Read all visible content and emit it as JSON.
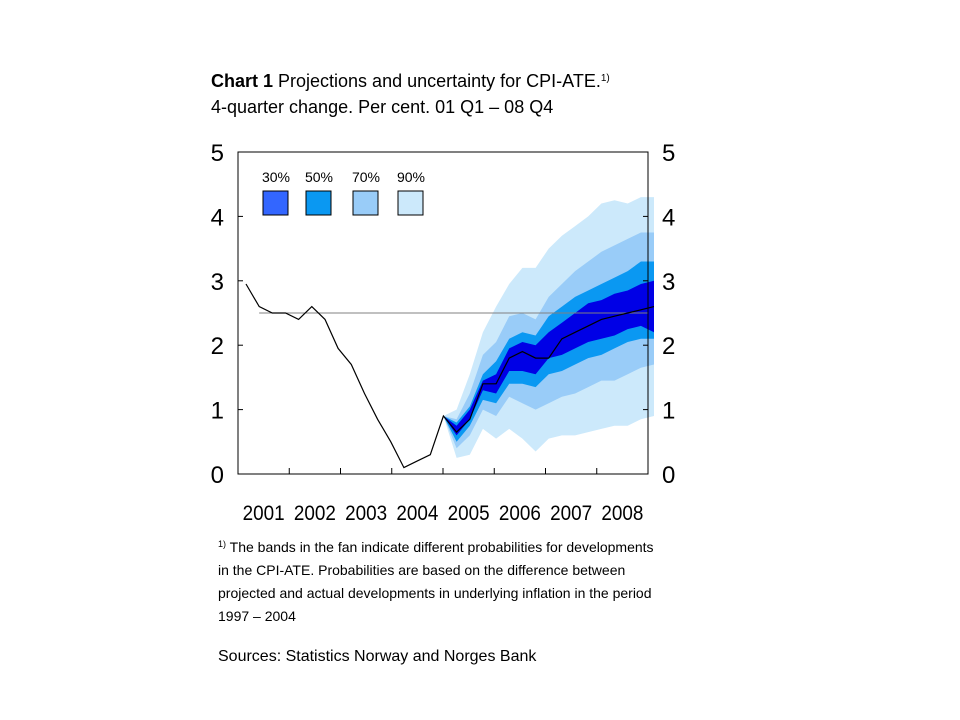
{
  "header": {
    "chart_label": "Chart 1",
    "title_rest": " Projections and uncertainty for CPI-ATE.",
    "title_sup": "1)",
    "subtitle": "4-quarter change. Per cent. 01 Q1 – 08 Q4"
  },
  "footnote": {
    "marker": "1)",
    "text": " The bands in the fan indicate different probabilities for developments in the CPI-ATE. Probabilities are based on the difference between projected and actual developments in underlying inflation in the period 1997 – 2004"
  },
  "sources": "Sources: Statistics Norway and Norges Bank",
  "colors": {
    "band_90": "#cce9fb",
    "band_70": "#99ccf8",
    "band_50": "#0a98f2",
    "band_30": "#0000e6",
    "legend_30": "#3366ff",
    "line": "#000000",
    "target_line": "#808080"
  },
  "chart_data": {
    "type": "area",
    "title": "Projections and uncertainty for CPI-ATE.",
    "subtitle": "4-quarter change. Per cent. 01 Q1 – 08 Q4",
    "x_tick_labels": [
      "2001",
      "2002",
      "2003",
      "2004",
      "2005",
      "2006",
      "2007",
      "2008"
    ],
    "y_left_ticks": [
      "0",
      "1",
      "2",
      "3",
      "4",
      "5"
    ],
    "y_right_ticks": [
      "0",
      "1",
      "2",
      "3",
      "4",
      "5"
    ],
    "ylim": [
      0,
      5
    ],
    "x_start": "01 Q1",
    "x_end": "08 Q4",
    "grid": false,
    "legend": [
      {
        "label": "30%",
        "color": "#3366ff"
      },
      {
        "label": "50%",
        "color": "#0a98f2"
      },
      {
        "label": "70%",
        "color": "#99ccf8"
      },
      {
        "label": "90%",
        "color": "#cce9fb"
      }
    ],
    "legend_position": "top-left",
    "inflation_target": 2.5,
    "series": [
      {
        "name": "CPI-ATE",
        "quarters": [
          "01 Q1",
          "01 Q2",
          "01 Q3",
          "01 Q4",
          "02 Q1",
          "02 Q2",
          "02 Q3",
          "02 Q4",
          "03 Q1",
          "03 Q2",
          "03 Q3",
          "03 Q4",
          "04 Q1",
          "04 Q2",
          "04 Q3",
          "04 Q4",
          "05 Q1",
          "05 Q2",
          "05 Q3",
          "05 Q4",
          "06 Q1",
          "06 Q2",
          "06 Q3",
          "06 Q4",
          "07 Q1",
          "07 Q2",
          "07 Q3",
          "07 Q4",
          "08 Q1",
          "08 Q2",
          "08 Q3",
          "08 Q4"
        ],
        "values": [
          2.95,
          2.6,
          2.5,
          2.5,
          2.4,
          2.6,
          2.4,
          1.95,
          1.7,
          1.25,
          0.85,
          0.5,
          0.1,
          0.2,
          0.3,
          0.9,
          0.65,
          0.85,
          1.4,
          1.4,
          1.8,
          1.9,
          1.8,
          1.8,
          2.1,
          2.2,
          2.3,
          2.4,
          2.45,
          2.5,
          2.55,
          2.6
        ]
      }
    ],
    "fan_quarters": [
      "04 Q4",
      "05 Q1",
      "05 Q2",
      "05 Q3",
      "05 Q4",
      "06 Q1",
      "06 Q2",
      "06 Q3",
      "06 Q4",
      "07 Q1",
      "07 Q2",
      "07 Q3",
      "07 Q4",
      "08 Q1",
      "08 Q2",
      "08 Q3",
      "08 Q4"
    ],
    "bands": [
      {
        "prob": "90%",
        "lower": [
          0.9,
          0.25,
          0.3,
          0.7,
          0.55,
          0.7,
          0.55,
          0.35,
          0.55,
          0.6,
          0.6,
          0.65,
          0.7,
          0.75,
          0.75,
          0.85,
          0.9
        ],
        "upper": [
          0.9,
          1.0,
          1.55,
          2.2,
          2.6,
          2.95,
          3.2,
          3.2,
          3.5,
          3.7,
          3.85,
          4.0,
          4.2,
          4.25,
          4.2,
          4.3,
          4.3
        ]
      },
      {
        "prob": "70%",
        "lower": [
          0.9,
          0.4,
          0.6,
          1.0,
          0.9,
          1.2,
          1.1,
          1.0,
          1.1,
          1.2,
          1.25,
          1.35,
          1.45,
          1.45,
          1.55,
          1.65,
          1.7
        ],
        "upper": [
          0.9,
          0.85,
          1.25,
          1.85,
          2.05,
          2.45,
          2.5,
          2.4,
          2.75,
          2.95,
          3.15,
          3.3,
          3.45,
          3.55,
          3.65,
          3.75,
          3.75
        ]
      },
      {
        "prob": "50%",
        "lower": [
          0.9,
          0.5,
          0.75,
          1.15,
          1.1,
          1.4,
          1.4,
          1.35,
          1.55,
          1.6,
          1.7,
          1.8,
          1.85,
          1.95,
          2.05,
          2.1,
          2.1
        ],
        "upper": [
          0.9,
          0.8,
          1.05,
          1.55,
          1.75,
          2.1,
          2.2,
          2.15,
          2.45,
          2.6,
          2.75,
          2.85,
          2.95,
          3.05,
          3.15,
          3.3,
          3.3
        ]
      },
      {
        "prob": "30%",
        "lower": [
          0.9,
          0.6,
          0.85,
          1.3,
          1.25,
          1.6,
          1.6,
          1.55,
          1.8,
          1.85,
          1.95,
          2.05,
          2.1,
          2.15,
          2.25,
          2.3,
          2.2
        ],
        "upper": [
          0.9,
          0.75,
          1.0,
          1.45,
          1.55,
          1.95,
          2.05,
          2.0,
          2.2,
          2.35,
          2.5,
          2.65,
          2.7,
          2.8,
          2.85,
          2.95,
          3.0
        ]
      }
    ]
  }
}
